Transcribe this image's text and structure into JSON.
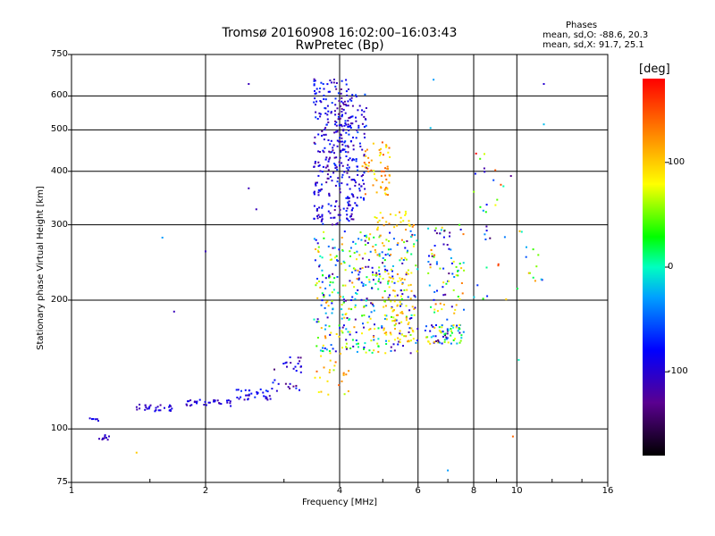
{
  "chart_data": {
    "type": "scatter",
    "title": "Tromsø 20160908 16:02:00–16:03:43",
    "subtitle": "RwPretec (Bp)",
    "xlabel": "Frequency [MHz]",
    "ylabel": "Stationary phase Virtual Height [km]",
    "xscale": "log",
    "yscale": "log",
    "xlim": [
      1,
      16
    ],
    "ylim": [
      75,
      750
    ],
    "x_ticks": [
      1,
      2,
      4,
      6,
      8,
      10,
      16
    ],
    "y_ticks": [
      75,
      100,
      200,
      300,
      400,
      500,
      600,
      750
    ],
    "grid": true,
    "stats": {
      "heading": "Phases",
      "o_line": "mean, sd,O: -88.6, 20.3",
      "x_line": "mean, sd,X:  91.7, 25.1"
    },
    "colorbar": {
      "label": "[deg]",
      "range": [
        -180,
        180
      ],
      "ticks": [
        100,
        0,
        -100
      ]
    },
    "clusters": [
      {
        "x": [
          1.1,
          1.16
        ],
        "y": [
          104,
          106
        ],
        "phase": [
          -110,
          -70
        ],
        "n": 6
      },
      {
        "x": [
          1.15,
          1.22
        ],
        "y": [
          94,
          97
        ],
        "phase": [
          -130,
          -95
        ],
        "n": 10
      },
      {
        "x": [
          1.4,
          1.7
        ],
        "y": [
          110,
          114
        ],
        "phase": [
          -120,
          -80
        ],
        "n": 28
      },
      {
        "x": [
          1.8,
          2.3
        ],
        "y": [
          113,
          117
        ],
        "phase": [
          -120,
          -80
        ],
        "n": 32
      },
      {
        "x": [
          2.3,
          2.8
        ],
        "y": [
          117,
          124
        ],
        "phase": [
          -120,
          -60
        ],
        "n": 32
      },
      {
        "x": [
          2.8,
          3.3
        ],
        "y": [
          122,
          148
        ],
        "phase": [
          -140,
          -60
        ],
        "n": 30
      },
      {
        "x": [
          3.5,
          4.3
        ],
        "y": [
          300,
          660
        ],
        "phase": [
          -130,
          -60
        ],
        "n": 330
      },
      {
        "x": [
          4.3,
          4.6
        ],
        "y": [
          330,
          620
        ],
        "phase": [
          -120,
          -50
        ],
        "n": 60
      },
      {
        "x": [
          4.5,
          5.2
        ],
        "y": [
          350,
          470
        ],
        "phase": [
          70,
          150
        ],
        "n": 60
      },
      {
        "x": [
          3.5,
          6.0
        ],
        "y": [
          150,
          290
        ],
        "phase": [
          -130,
          130
        ],
        "n": 420
      },
      {
        "x": [
          4.8,
          5.9
        ],
        "y": [
          290,
          325
        ],
        "phase": [
          70,
          130
        ],
        "n": 30
      },
      {
        "x": [
          5.0,
          5.9
        ],
        "y": [
          160,
          240
        ],
        "phase": [
          70,
          120
        ],
        "n": 60
      },
      {
        "x": [
          3.5,
          4.2
        ],
        "y": [
          120,
          150
        ],
        "phase": [
          60,
          150
        ],
        "n": 25
      },
      {
        "x": [
          6.2,
          7.6
        ],
        "y": [
          158,
          175
        ],
        "phase": [
          -150,
          110
        ],
        "n": 70
      },
      {
        "x": [
          6.3,
          7.7
        ],
        "y": [
          180,
          300
        ],
        "phase": [
          -140,
          140
        ],
        "n": 80
      },
      {
        "x": [
          8.0,
          9.5
        ],
        "y": [
          200,
          440
        ],
        "phase": [
          -150,
          170
        ],
        "n": 30
      },
      {
        "x": [
          10.0,
          11.5
        ],
        "y": [
          205,
          290
        ],
        "phase": [
          -100,
          120
        ],
        "n": 14
      }
    ],
    "isolated_points": [
      {
        "x": 1.6,
        "y": 280,
        "phase": -30
      },
      {
        "x": 1.7,
        "y": 188,
        "phase": -110
      },
      {
        "x": 2.0,
        "y": 260,
        "phase": -110
      },
      {
        "x": 2.5,
        "y": 640,
        "phase": -110
      },
      {
        "x": 2.5,
        "y": 365,
        "phase": -110
      },
      {
        "x": 2.6,
        "y": 326,
        "phase": -110
      },
      {
        "x": 1.4,
        "y": 88,
        "phase": 100
      },
      {
        "x": 6.5,
        "y": 655,
        "phase": -30
      },
      {
        "x": 6.4,
        "y": 505,
        "phase": -20
      },
      {
        "x": 7.0,
        "y": 80,
        "phase": -30
      },
      {
        "x": 9.8,
        "y": 96,
        "phase": 140
      },
      {
        "x": 10.1,
        "y": 145,
        "phase": 0
      },
      {
        "x": 11.5,
        "y": 640,
        "phase": -100
      },
      {
        "x": 11.5,
        "y": 515,
        "phase": -20
      },
      {
        "x": 8.1,
        "y": 440,
        "phase": 180
      },
      {
        "x": 9.7,
        "y": 390,
        "phase": -130
      }
    ]
  }
}
